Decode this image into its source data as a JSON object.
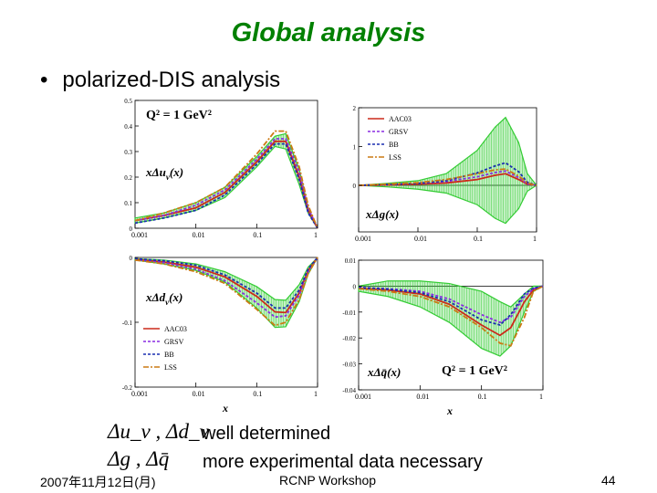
{
  "slide": {
    "title": "Global analysis",
    "bullet": "polarized-DIS analysis",
    "note_1": "well determined",
    "note_2": "more experimental data necessary",
    "formula_1": "Δu_v , Δd_v",
    "formula_2": "Δg , Δq̄",
    "footer_date": "2007年11月12日(月)",
    "footer_center": "RCNP Workshop",
    "page_number": "44"
  },
  "colors": {
    "title": "#008000",
    "AAC03": "#cc2a1a",
    "GRSV": "#8a2be2",
    "BB": "#1a2fb0",
    "LSS": "#cc7a14",
    "band": "#33cc33"
  },
  "chart_data": [
    {
      "type": "line",
      "panel": "top-left",
      "label": "xΔu_v(x)",
      "annotation": "Q² = 1 GeV²",
      "x_scale": "log",
      "xlim": [
        0.001,
        1
      ],
      "ylim": [
        0,
        0.5
      ],
      "x_ticks": [
        "0.001",
        "0.01",
        "0.1",
        "1"
      ],
      "y_ticks": [
        "0",
        "0.1",
        "0.2",
        "0.3",
        "0.4",
        "0.5"
      ],
      "x": [
        0.001,
        0.003,
        0.01,
        0.03,
        0.1,
        0.2,
        0.3,
        0.5,
        0.7,
        1.0
      ],
      "series": [
        {
          "name": "AAC03",
          "values": [
            0.03,
            0.05,
            0.08,
            0.14,
            0.26,
            0.34,
            0.34,
            0.2,
            0.07,
            0
          ]
        },
        {
          "name": "GRSV",
          "values": [
            0.03,
            0.05,
            0.09,
            0.15,
            0.27,
            0.35,
            0.35,
            0.22,
            0.08,
            0
          ]
        },
        {
          "name": "BB",
          "values": [
            0.02,
            0.04,
            0.07,
            0.13,
            0.25,
            0.33,
            0.33,
            0.19,
            0.06,
            0
          ]
        },
        {
          "name": "LSS",
          "values": [
            0.03,
            0.06,
            0.1,
            0.16,
            0.29,
            0.38,
            0.38,
            0.24,
            0.09,
            0
          ]
        }
      ],
      "band_upper": [
        0.04,
        0.06,
        0.1,
        0.16,
        0.28,
        0.36,
        0.37,
        0.23,
        0.08,
        0
      ],
      "band_lower": [
        0.02,
        0.04,
        0.07,
        0.12,
        0.24,
        0.32,
        0.31,
        0.17,
        0.06,
        0
      ]
    },
    {
      "type": "line",
      "panel": "top-right",
      "label": "xΔg(x)",
      "x_scale": "log",
      "xlim": [
        0.001,
        1
      ],
      "ylim": [
        -1.2,
        2
      ],
      "x_ticks": [
        "0.001",
        "0.01",
        "0.1",
        "1"
      ],
      "y_ticks": [
        "0",
        "1",
        "2"
      ],
      "legend": [
        "AAC03",
        "GRSV",
        "BB",
        "LSS"
      ],
      "x": [
        0.001,
        0.003,
        0.01,
        0.03,
        0.1,
        0.2,
        0.3,
        0.5,
        0.7,
        1.0
      ],
      "series": [
        {
          "name": "AAC03",
          "values": [
            0,
            0.01,
            0.03,
            0.06,
            0.15,
            0.26,
            0.3,
            0.15,
            0.03,
            0
          ]
        },
        {
          "name": "GRSV",
          "values": [
            0,
            0.02,
            0.05,
            0.1,
            0.22,
            0.33,
            0.37,
            0.2,
            0.04,
            0
          ]
        },
        {
          "name": "BB",
          "values": [
            0,
            0.02,
            0.05,
            0.12,
            0.32,
            0.5,
            0.58,
            0.35,
            0.08,
            0
          ]
        },
        {
          "name": "LSS",
          "values": [
            0,
            0.03,
            0.07,
            0.15,
            0.3,
            0.4,
            0.42,
            0.24,
            0.06,
            0
          ]
        }
      ],
      "band_upper": [
        0,
        0.05,
        0.12,
        0.3,
        0.9,
        1.5,
        1.75,
        1.1,
        0.3,
        0
      ],
      "band_lower": [
        0,
        -0.04,
        -0.1,
        -0.2,
        -0.5,
        -0.85,
        -0.98,
        -0.6,
        -0.15,
        0
      ]
    },
    {
      "type": "line",
      "panel": "bottom-left",
      "label": "xΔd_v(x)",
      "x_scale": "log",
      "xlim": [
        0.001,
        1
      ],
      "ylim": [
        -0.2,
        0
      ],
      "x_ticks": [
        "0.001",
        "0.01",
        "0.1",
        "1"
      ],
      "y_ticks": [
        "-0.2",
        "-0.1",
        "0"
      ],
      "xlabel": "x",
      "legend": [
        "AAC03",
        "GRSV",
        "BB",
        "LSS"
      ],
      "x": [
        0.001,
        0.003,
        0.01,
        0.03,
        0.1,
        0.2,
        0.3,
        0.5,
        0.7,
        1.0
      ],
      "series": [
        {
          "name": "AAC03",
          "values": [
            -0.003,
            -0.007,
            -0.015,
            -0.03,
            -0.06,
            -0.084,
            -0.085,
            -0.055,
            -0.02,
            0
          ]
        },
        {
          "name": "GRSV",
          "values": [
            -0.003,
            -0.008,
            -0.018,
            -0.036,
            -0.07,
            -0.092,
            -0.09,
            -0.058,
            -0.022,
            0
          ]
        },
        {
          "name": "BB",
          "values": [
            -0.002,
            -0.005,
            -0.012,
            -0.027,
            -0.055,
            -0.078,
            -0.078,
            -0.05,
            -0.018,
            0
          ]
        },
        {
          "name": "LSS",
          "values": [
            -0.004,
            -0.01,
            -0.022,
            -0.04,
            -0.08,
            -0.105,
            -0.1,
            -0.065,
            -0.025,
            0
          ]
        }
      ],
      "band_upper": [
        -0.002,
        -0.004,
        -0.01,
        -0.022,
        -0.045,
        -0.065,
        -0.066,
        -0.042,
        -0.015,
        0
      ],
      "band_lower": [
        -0.004,
        -0.01,
        -0.02,
        -0.038,
        -0.078,
        -0.108,
        -0.107,
        -0.068,
        -0.026,
        0
      ]
    },
    {
      "type": "line",
      "panel": "bottom-right",
      "label": "xΔq̄(x)",
      "annotation": "Q² = 1 GeV²",
      "x_scale": "log",
      "xlim": [
        0.001,
        1
      ],
      "ylim": [
        -0.04,
        0.01
      ],
      "x_ticks": [
        "0.001",
        "0.01",
        "0.1",
        "1"
      ],
      "y_ticks": [
        "-0.04",
        "-0.03",
        "-0.02",
        "-0.01",
        "0",
        "0.01"
      ],
      "xlabel": "x",
      "x": [
        0.001,
        0.003,
        0.01,
        0.03,
        0.1,
        0.2,
        0.3,
        0.5,
        0.7,
        1.0
      ],
      "series": [
        {
          "name": "AAC03",
          "values": [
            -0.0008,
            -0.0015,
            -0.003,
            -0.007,
            -0.015,
            -0.019,
            -0.016,
            -0.006,
            -0.0015,
            0
          ]
        },
        {
          "name": "GRSV",
          "values": [
            -0.0005,
            -0.001,
            -0.002,
            -0.005,
            -0.011,
            -0.014,
            -0.012,
            -0.004,
            -0.001,
            0
          ]
        },
        {
          "name": "BB",
          "values": [
            -0.0006,
            -0.0012,
            -0.0025,
            -0.006,
            -0.013,
            -0.015,
            -0.011,
            -0.003,
            -0.0008,
            0
          ]
        },
        {
          "name": "LSS",
          "values": [
            -0.001,
            -0.002,
            -0.004,
            -0.008,
            -0.016,
            -0.022,
            -0.023,
            -0.012,
            -0.002,
            0
          ]
        }
      ],
      "band_upper": [
        0,
        0.002,
        0.002,
        0.001,
        -0.002,
        -0.006,
        -0.008,
        -0.003,
        0,
        0
      ],
      "band_lower": [
        -0.002,
        -0.004,
        -0.008,
        -0.014,
        -0.024,
        -0.027,
        -0.023,
        -0.01,
        -0.002,
        0
      ]
    }
  ]
}
